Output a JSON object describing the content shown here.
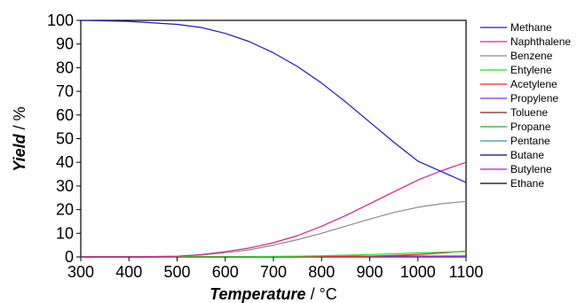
{
  "chart_data": {
    "type": "line",
    "xlabel": "Temperature",
    "xlabel_unit": " / °C",
    "ylabel": "Yield",
    "ylabel_unit": " / %",
    "xlim": [
      300,
      1100
    ],
    "ylim": [
      0,
      100
    ],
    "x_ticks": [
      300,
      400,
      500,
      600,
      700,
      800,
      900,
      1000,
      1100
    ],
    "y_ticks": [
      0,
      10,
      20,
      30,
      40,
      50,
      60,
      70,
      80,
      90,
      100
    ],
    "grid": false,
    "legend_position": "right",
    "x": [
      300,
      400,
      500,
      550,
      600,
      650,
      700,
      750,
      800,
      850,
      900,
      950,
      1000,
      1050,
      1100
    ],
    "series": [
      {
        "name": "Methane",
        "color": "#1a1ac8",
        "values": [
          100,
          99.6,
          98.3,
          97.0,
          94.5,
          91.0,
          86.3,
          80.5,
          73.5,
          65.5,
          57.0,
          48.5,
          40.5,
          36.0,
          31.5
        ]
      },
      {
        "name": "Naphthalene",
        "color": "#e0208c",
        "values": [
          0,
          0,
          0.3,
          1.0,
          2.2,
          3.8,
          6.0,
          9.0,
          13.0,
          17.5,
          22.5,
          27.5,
          32.5,
          36.5,
          40.0
        ]
      },
      {
        "name": "Benzene",
        "color": "#8c8c8c",
        "values": [
          0,
          0,
          0.3,
          0.8,
          1.8,
          3.0,
          5.0,
          7.3,
          10.0,
          13.0,
          16.0,
          18.8,
          21.0,
          22.5,
          23.5
        ]
      },
      {
        "name": "Ehtylene",
        "color": "#22dd22",
        "values": [
          0,
          0,
          0,
          0,
          0.05,
          0.1,
          0.2,
          0.3,
          0.5,
          0.7,
          1.0,
          1.3,
          1.7,
          2.0,
          2.3
        ]
      },
      {
        "name": "Acetylene",
        "color": "#ff2020",
        "values": [
          0,
          0,
          0,
          0,
          0,
          0,
          0.02,
          0.05,
          0.1,
          0.2,
          0.35,
          0.6,
          1.0,
          1.7,
          2.5
        ]
      },
      {
        "name": "Propylene",
        "color": "#8a2be2",
        "values": [
          0,
          0,
          0,
          0,
          0,
          0.02,
          0.04,
          0.06,
          0.08,
          0.1,
          0.12,
          0.14,
          0.15,
          0.16,
          0.17
        ]
      },
      {
        "name": "Toluene",
        "color": "#8b1a1a",
        "values": [
          0,
          0,
          0.02,
          0.05,
          0.08,
          0.12,
          0.16,
          0.2,
          0.24,
          0.27,
          0.3,
          0.32,
          0.34,
          0.35,
          0.36
        ]
      },
      {
        "name": "Propane",
        "color": "#2ca02c",
        "values": [
          0,
          0,
          0,
          0,
          0,
          0.01,
          0.02,
          0.03,
          0.04,
          0.05,
          0.06,
          0.07,
          0.08,
          0.09,
          0.1
        ]
      },
      {
        "name": "Pentane",
        "color": "#20a0a0",
        "values": [
          0,
          0,
          0,
          0,
          0,
          0,
          0,
          0,
          0,
          0,
          0,
          0,
          0,
          0,
          0
        ]
      },
      {
        "name": "Butane",
        "color": "#000080",
        "values": [
          0,
          0,
          0,
          0,
          0,
          0,
          0,
          0,
          0,
          0.01,
          0.01,
          0.01,
          0.01,
          0.01,
          0.01
        ]
      },
      {
        "name": "Butylene",
        "color": "#b01eb0",
        "values": [
          0,
          0,
          0,
          0,
          0,
          0,
          0.01,
          0.02,
          0.03,
          0.04,
          0.05,
          0.06,
          0.07,
          0.08,
          0.09
        ]
      },
      {
        "name": "Ethane",
        "color": "#000000",
        "values": [
          0,
          0,
          0,
          0,
          0,
          0.02,
          0.04,
          0.06,
          0.08,
          0.1,
          0.12,
          0.14,
          0.16,
          0.18,
          0.2
        ]
      }
    ]
  }
}
